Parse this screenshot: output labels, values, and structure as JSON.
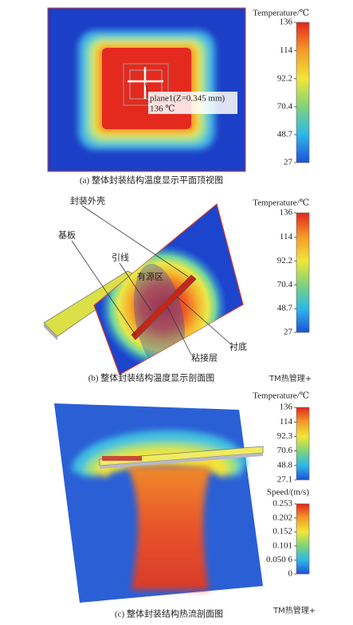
{
  "panels": [
    {
      "caption": "(a) 整体封装结构温度显示平面顶视图",
      "colorbars": [
        {
          "title": "Temperature/℃",
          "range": [
            27,
            136
          ],
          "ticks": [
            136,
            114,
            92.2,
            70.4,
            48.7,
            27
          ]
        }
      ],
      "annotations": [
        "plane1(Z=0.345 mm)",
        "136 ℃"
      ]
    },
    {
      "caption": "(b) 整体封装结构温度显示剖面图",
      "colorbars": [
        {
          "title": "Temperature/℃",
          "range": [
            27,
            136
          ],
          "ticks": [
            136,
            114,
            92.2,
            70.4,
            48.7,
            27
          ]
        }
      ],
      "annotations": [
        "封装外壳",
        "基板",
        "引线",
        "有源区",
        "衬底",
        "粘接层"
      ]
    },
    {
      "caption": "(c) 整体封装结构热流剖面图",
      "colorbars": [
        {
          "title": "Temperature/℃",
          "range": [
            27.1,
            136
          ],
          "ticks": [
            136,
            114,
            92.3,
            70.6,
            48.8,
            27.1
          ]
        },
        {
          "title": "Speed/(m/s)",
          "range": [
            0,
            0.253
          ],
          "ticks": [
            0.253,
            0.202,
            0.152,
            0.101,
            {
              "value": 0.0506,
              "label": "0.050 6"
            },
            0
          ]
        }
      ],
      "annotations": []
    }
  ],
  "watermarks": [
    "TM热管理+",
    "TM热管理+"
  ]
}
